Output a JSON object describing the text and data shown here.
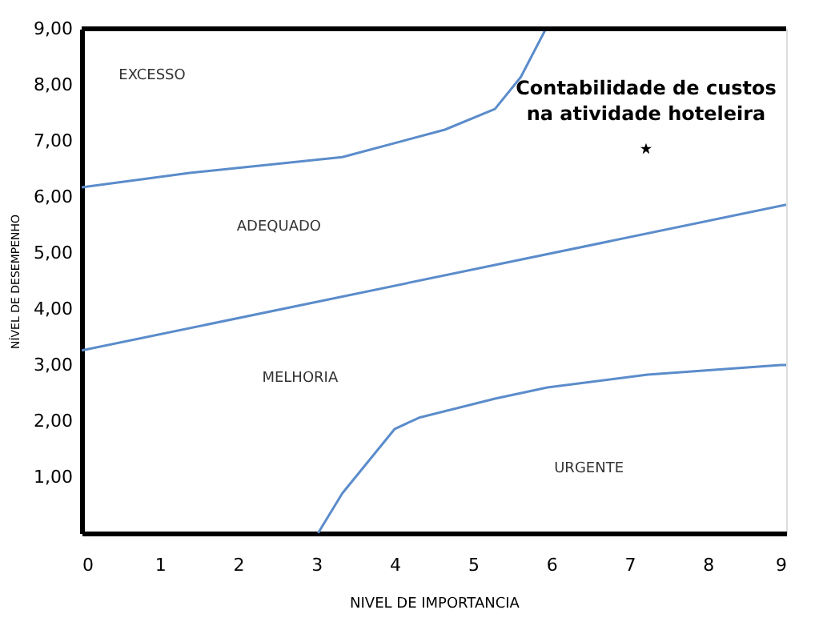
{
  "chart_data": {
    "type": "line",
    "xlabel": "NIVEL DE IMPORTANCIA",
    "ylabel": "NÍVEL DE DESEMPENHO",
    "xlim": [
      0,
      9
    ],
    "ylim": [
      0,
      9
    ],
    "xticks": [
      0,
      1,
      2,
      3,
      4,
      5,
      6,
      7,
      8,
      9
    ],
    "yticks": [
      {
        "value": 1,
        "label": "1,00"
      },
      {
        "value": 2,
        "label": "2,00"
      },
      {
        "value": 3,
        "label": "3,00"
      },
      {
        "value": 4,
        "label": "4,00"
      },
      {
        "value": 5,
        "label": "5,00"
      },
      {
        "value": 6,
        "label": "6,00"
      },
      {
        "value": 7,
        "label": "7,00"
      },
      {
        "value": 8,
        "label": "8,00"
      },
      {
        "value": 9,
        "label": "9,00"
      }
    ],
    "grid": false,
    "legend": false,
    "line_style": "solid",
    "series": [
      {
        "color": "#5b8ccb",
        "x": [
          0,
          1.38,
          3.33,
          4.64,
          5.28,
          5.61,
          5.93
        ],
        "values": [
          6.17,
          6.43,
          6.71,
          7.2,
          7.57,
          8.14,
          9
        ]
      },
      {
        "color": "#5b8ccb",
        "x": [
          0,
          9
        ],
        "values": [
          3.26,
          5.86
        ]
      },
      {
        "color": "#5b8ccb",
        "x": [
          3.02,
          3.33,
          4.0,
          4.31,
          5.28,
          5.95,
          7.23,
          8.93,
          9
        ],
        "values": [
          0,
          0.71,
          1.86,
          2.06,
          2.4,
          2.6,
          2.83,
          3.0,
          3.0
        ]
      },
      {
        "type": "scatter",
        "name": "Contabilidade de custos\nna atividade hoteleira",
        "color": "#000000",
        "marker": "star",
        "x": [
          7.21
        ],
        "values": [
          6.86
        ]
      }
    ],
    "annotations": [
      "EXCESSO",
      "ADEQUADO",
      "MELHORIA",
      "URGENTE"
    ]
  }
}
